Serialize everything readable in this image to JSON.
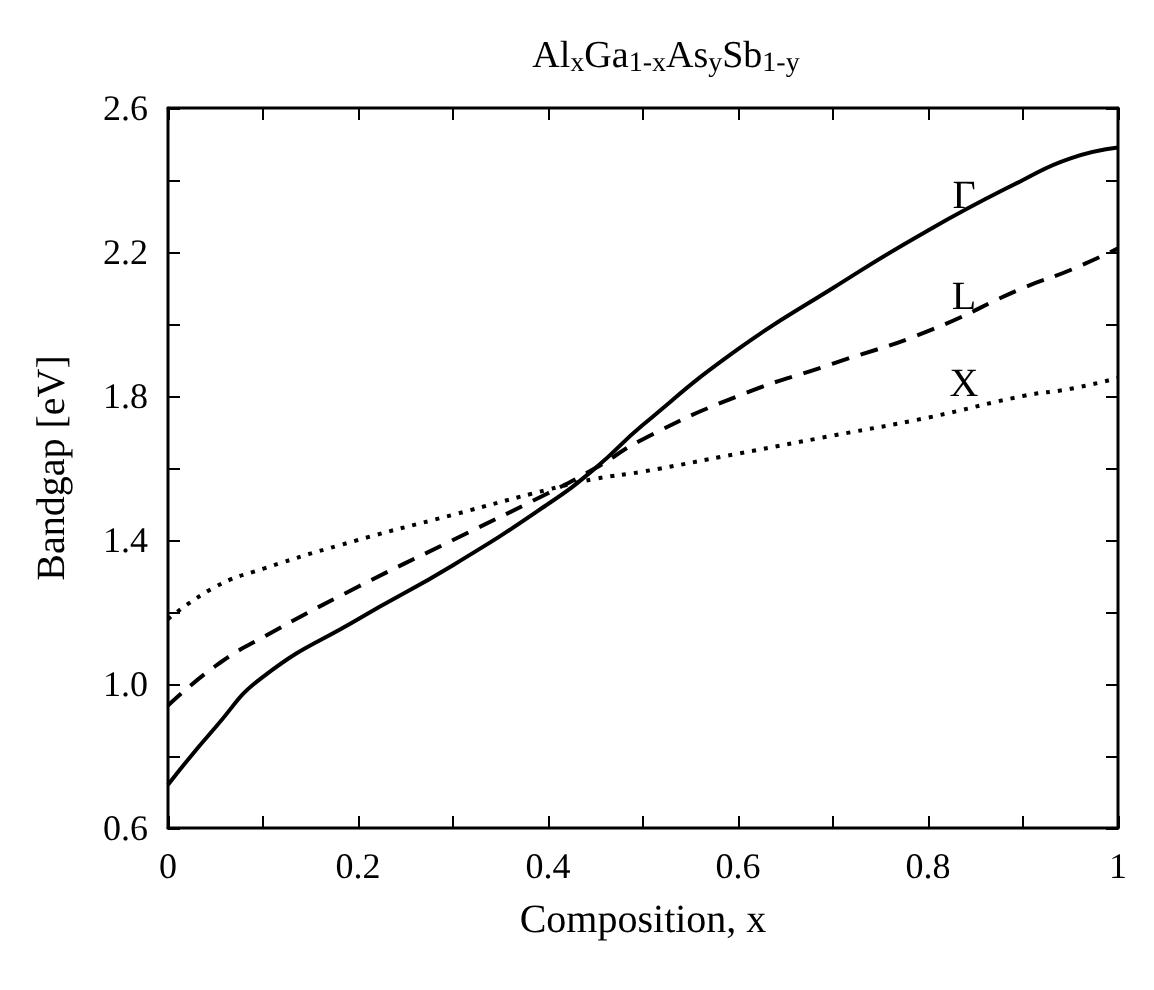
{
  "chart_data": {
    "type": "line",
    "title": "Al$_{x}$Ga$_{1-x}$As$_{y}$Sb$_{1-y}$",
    "xlabel": "Composition, x",
    "ylabel": "Bandgap [eV]",
    "x": [
      0,
      0.05,
      0.1,
      0.2,
      0.3,
      0.4,
      0.45,
      0.5,
      0.6,
      0.7,
      0.8,
      0.9,
      0.95,
      1
    ],
    "series": [
      {
        "name": "Γ",
        "color": "#000000",
        "line_style": "solid",
        "values": [
          0.72,
          0.88,
          1.02,
          1.18,
          1.33,
          1.5,
          1.6,
          1.72,
          1.93,
          2.1,
          2.26,
          2.4,
          2.46,
          2.49
        ]
      },
      {
        "name": "L",
        "color": "#000000",
        "line_style": "dashed",
        "values": [
          0.94,
          1.05,
          1.13,
          1.27,
          1.4,
          1.53,
          1.6,
          1.68,
          1.8,
          1.89,
          1.98,
          2.1,
          2.15,
          2.21
        ]
      },
      {
        "name": "X",
        "color": "#000000",
        "line_style": "dotted",
        "values": [
          1.18,
          1.27,
          1.32,
          1.4,
          1.47,
          1.54,
          1.57,
          1.59,
          1.64,
          1.69,
          1.74,
          1.8,
          1.82,
          1.85
        ]
      }
    ],
    "xlim": [
      0,
      1
    ],
    "xticks": [
      0,
      {
        "value": 0.1,
        "label": null
      },
      0.2,
      {
        "value": 0.3,
        "label": null
      },
      0.4,
      {
        "value": 0.5,
        "label": null
      },
      0.6,
      {
        "value": 0.7,
        "label": null
      },
      0.8,
      {
        "value": 0.9,
        "label": null
      },
      1
    ],
    "ylim": [
      0.6,
      2.6
    ],
    "yticks": [
      0.6,
      {
        "value": 0.8,
        "label": null
      },
      {
        "value": 1.0,
        "label": "1.0"
      },
      {
        "value": 1.2,
        "label": null
      },
      1.4,
      {
        "value": 1.6,
        "label": null
      },
      1.8,
      {
        "value": 2.0,
        "label": null
      },
      2.2,
      {
        "value": 2.4,
        "label": null
      },
      2.6
    ],
    "grid": false,
    "legend": false,
    "marker": "none"
  }
}
